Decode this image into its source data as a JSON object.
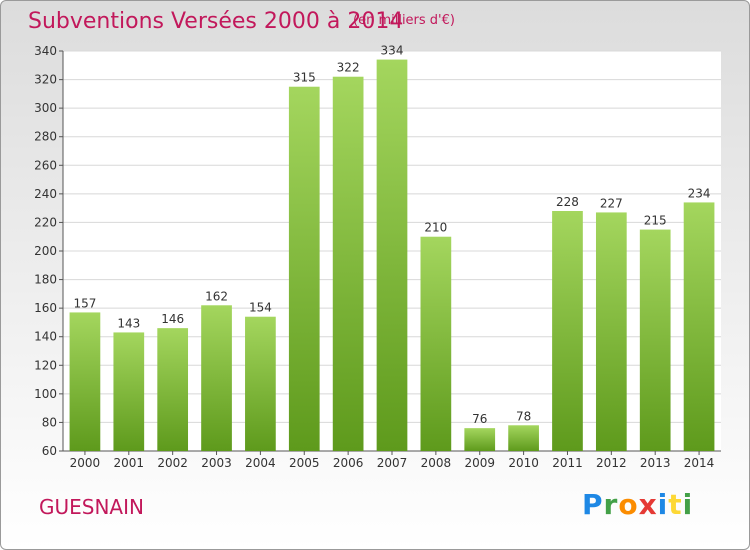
{
  "chart_data": {
    "type": "bar",
    "title": "Subventions Versées 2000 à 2014",
    "subtitle": "(en milliers d'€)",
    "categories": [
      "2000",
      "2001",
      "2002",
      "2003",
      "2004",
      "2005",
      "2006",
      "2007",
      "2008",
      "2009",
      "2010",
      "2011",
      "2012",
      "2013",
      "2014"
    ],
    "values": [
      157,
      143,
      146,
      162,
      154,
      315,
      322,
      334,
      210,
      76,
      78,
      228,
      227,
      215,
      234
    ],
    "ylim": [
      60,
      340
    ],
    "yticks": [
      60,
      80,
      100,
      120,
      140,
      160,
      180,
      200,
      220,
      240,
      260,
      280,
      300,
      320,
      340
    ],
    "grid": true,
    "bar_color": "#7cb82f",
    "bar_color_light": "#a4d65e",
    "bar_color_dark": "#5e9a1c"
  },
  "footer": {
    "commune": "GUESNAIN",
    "logo_text": "Proxiti"
  },
  "colors": {
    "accent": "#c2185b"
  }
}
